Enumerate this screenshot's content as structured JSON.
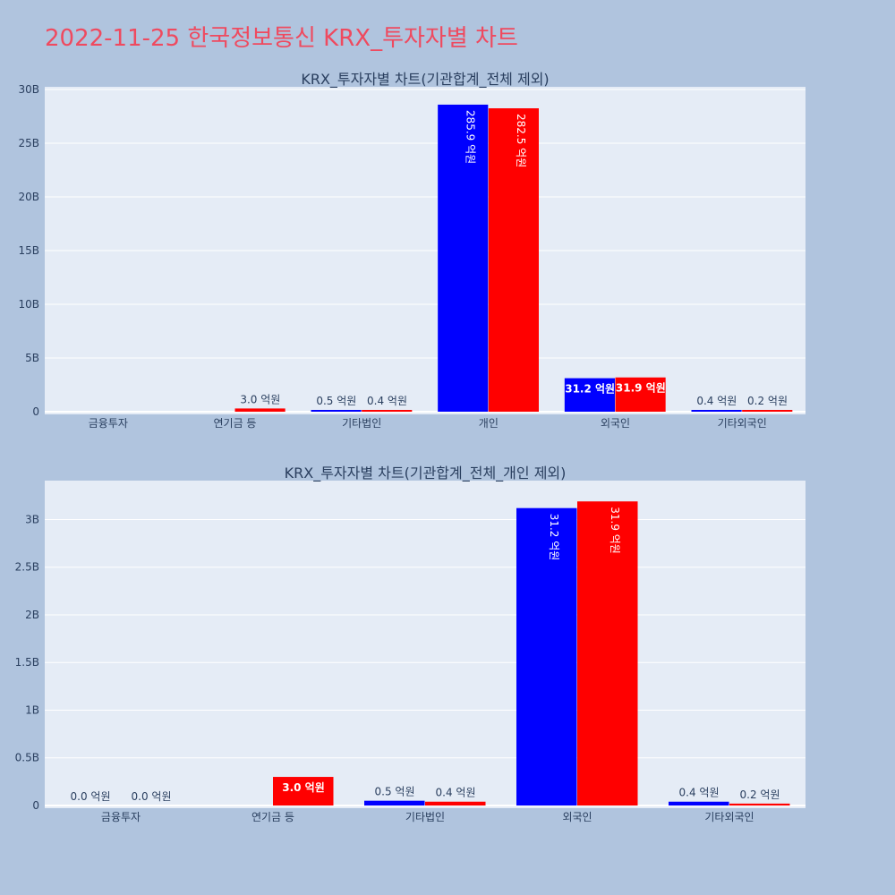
{
  "title": "2022-11-25 한국정보통신 KRX_투자자별 차트",
  "colors": {
    "background": "#b0c4de",
    "plot_bg": "#e5ecf6",
    "title": "#ef4a5f",
    "buy": "#0000ff",
    "sell": "#ff0000",
    "text": "#2a3f5f"
  },
  "chart_data": [
    {
      "type": "bar",
      "title": "KRX_투자자별 차트(기관합계_전체 제외)",
      "categories": [
        "금융투자",
        "연기금 등",
        "기타법인",
        "개인",
        "외국인",
        "기타외국인"
      ],
      "ylim": [
        0,
        30000000000
      ],
      "yticks": [
        0,
        5000000000,
        10000000000,
        15000000000,
        20000000000,
        25000000000,
        30000000000
      ],
      "yticklabels": [
        "0",
        "5B",
        "10B",
        "15B",
        "20B",
        "25B",
        "30B"
      ],
      "series": [
        {
          "color": "#0000ff",
          "values": [
            null,
            null,
            50000000,
            28590000000,
            3120000000,
            40000000
          ],
          "labels": [
            "",
            "",
            "0.5 억원",
            "285.9 억원",
            "31.2 억원",
            "0.4 억원"
          ]
        },
        {
          "color": "#ff0000",
          "values": [
            null,
            300000000,
            40000000,
            28250000000,
            3190000000,
            20000000
          ],
          "labels": [
            "",
            "3.0 억원",
            "0.4 억원",
            "282.5 억원",
            "31.9 억원",
            "0.2 억원"
          ]
        }
      ]
    },
    {
      "type": "bar",
      "title": "KRX_투자자별 차트(기관합계_전체_개인 제외)",
      "categories": [
        "금융투자",
        "연기금 등",
        "기타법인",
        "외국인",
        "기타외국인"
      ],
      "ylim": [
        0,
        3380000000
      ],
      "yticks": [
        0,
        500000000,
        1000000000,
        1500000000,
        2000000000,
        2500000000,
        3000000000
      ],
      "yticklabels": [
        "0",
        "0.5B",
        "1B",
        "1.5B",
        "2B",
        "2.5B",
        "3B"
      ],
      "series": [
        {
          "color": "#0000ff",
          "values": [
            0,
            null,
            50000000,
            3120000000,
            40000000
          ],
          "labels": [
            "0.0 억원",
            "",
            "0.5 억원",
            "31.2 억원",
            "0.4 억원"
          ]
        },
        {
          "color": "#ff0000",
          "values": [
            0,
            300000000,
            40000000,
            3190000000,
            20000000
          ],
          "labels": [
            "0.0 억원",
            "3.0 억원",
            "0.4 억원",
            "31.9 억원",
            "0.2 억원"
          ]
        }
      ]
    }
  ]
}
